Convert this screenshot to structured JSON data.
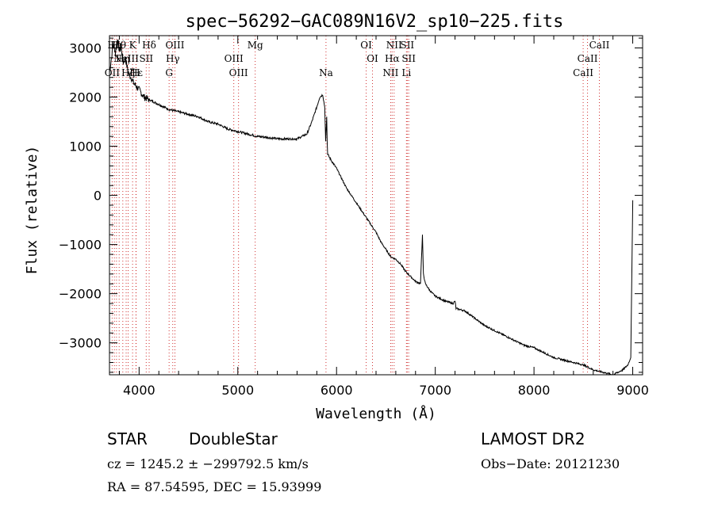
{
  "chart_data": {
    "type": "line",
    "title": "spec−56292−GAC089N16V2_sp10−225.fits",
    "xlabel": "Wavelength (Å)",
    "ylabel": "Flux (relative)",
    "xlim": [
      3700,
      9100
    ],
    "ylim": [
      -3650,
      3250
    ],
    "xticks": [
      4000,
      5000,
      6000,
      7000,
      8000,
      9000
    ],
    "yticks": [
      -3000,
      -2000,
      -1000,
      0,
      1000,
      2000,
      3000
    ],
    "grid": false,
    "series": [
      {
        "x": [
          3700,
          3720,
          3740,
          3760,
          3780,
          3800,
          3820,
          3840,
          3860,
          3880,
          3900,
          3920,
          3940,
          3960,
          3980,
          4000,
          4050,
          4100,
          4150,
          4200,
          4300,
          4400,
          4500,
          4600,
          4700,
          4800,
          4900,
          5000,
          5100,
          5200,
          5300,
          5400,
          5500,
          5600,
          5700,
          5750,
          5800,
          5830,
          5860,
          5880,
          5890,
          5900,
          5905,
          5910,
          5920,
          5950,
          6000,
          6050,
          6100,
          6150,
          6200,
          6250,
          6300,
          6350,
          6400,
          6450,
          6500,
          6550,
          6600,
          6650,
          6700,
          6750,
          6800,
          6850,
          6860,
          6870,
          6880,
          6900,
          6950,
          7000,
          7100,
          7180,
          7200,
          7210,
          7300,
          7400,
          7500,
          7600,
          7700,
          7800,
          7900,
          8000,
          8100,
          8200,
          8300,
          8400,
          8500,
          8600,
          8700,
          8800,
          8850,
          8900,
          8950,
          8980,
          9000
        ],
        "y": [
          2500,
          2800,
          3100,
          2900,
          3200,
          2950,
          3000,
          2700,
          2800,
          2600,
          2450,
          2400,
          2300,
          2250,
          2200,
          2150,
          2000,
          1950,
          1900,
          1850,
          1750,
          1700,
          1650,
          1600,
          1500,
          1450,
          1350,
          1300,
          1250,
          1200,
          1180,
          1150,
          1150,
          1150,
          1250,
          1500,
          1800,
          2000,
          2050,
          1800,
          1100,
          1600,
          1100,
          850,
          800,
          700,
          550,
          350,
          150,
          0,
          -150,
          -300,
          -450,
          -600,
          -750,
          -950,
          -1100,
          -1250,
          -1300,
          -1400,
          -1550,
          -1650,
          -1750,
          -1800,
          -1300,
          -800,
          -1600,
          -1800,
          -1950,
          -2050,
          -2150,
          -2200,
          -2150,
          -2300,
          -2350,
          -2500,
          -2650,
          -2750,
          -2850,
          -2950,
          -3050,
          -3100,
          -3200,
          -3300,
          -3350,
          -3400,
          -3450,
          -3550,
          -3600,
          -3650,
          -3600,
          -3550,
          -3450,
          -3300,
          -100
        ]
      }
    ],
    "lines": [
      {
        "x": 3727,
        "labels": [
          "OII"
        ],
        "rows": [
          3
        ]
      },
      {
        "x": 3750,
        "labels": [
          "Hη"
        ],
        "rows": [
          1
        ]
      },
      {
        "x": 3771,
        "labels": [
          "Hι"
        ],
        "rows": [
          1
        ]
      },
      {
        "x": 3798,
        "labels": [
          "Hθ"
        ],
        "rows": [
          1
        ]
      },
      {
        "x": 3835,
        "labels": [
          "Hη"
        ],
        "rows": [
          2
        ]
      },
      {
        "x": 3869,
        "labels": [
          "NeIII"
        ],
        "rows": [
          2
        ]
      },
      {
        "x": 3889,
        "labels": [
          "Hζ"
        ],
        "rows": [
          3
        ]
      },
      {
        "x": 3934,
        "labels": [
          "K"
        ],
        "rows": [
          1
        ]
      },
      {
        "x": 3968,
        "labels": [
          "H"
        ],
        "rows": [
          3
        ]
      },
      {
        "x": 3970,
        "labels": [
          "Hε"
        ],
        "rows": [
          3
        ]
      },
      {
        "x": 4072,
        "labels": [
          "SII"
        ],
        "rows": [
          2
        ]
      },
      {
        "x": 4102,
        "labels": [
          "Hδ"
        ],
        "rows": [
          1
        ]
      },
      {
        "x": 4304,
        "labels": [
          "G"
        ],
        "rows": [
          3
        ]
      },
      {
        "x": 4341,
        "labels": [
          "Hγ"
        ],
        "rows": [
          2
        ]
      },
      {
        "x": 4363,
        "labels": [
          "OIII"
        ],
        "rows": [
          1
        ]
      },
      {
        "x": 4959,
        "labels": [
          "OIII"
        ],
        "rows": [
          2
        ]
      },
      {
        "x": 5007,
        "labels": [
          "OIII"
        ],
        "rows": [
          3
        ]
      },
      {
        "x": 5176,
        "labels": [
          "Mg"
        ],
        "rows": [
          1
        ]
      },
      {
        "x": 5893,
        "labels": [
          "Na"
        ],
        "rows": [
          3
        ]
      },
      {
        "x": 6300,
        "labels": [
          "OI"
        ],
        "rows": [
          1
        ]
      },
      {
        "x": 6364,
        "labels": [
          "OI"
        ],
        "rows": [
          2
        ]
      },
      {
        "x": 6548,
        "labels": [
          "NII"
        ],
        "rows": [
          3
        ]
      },
      {
        "x": 6563,
        "labels": [
          "Hα"
        ],
        "rows": [
          2
        ]
      },
      {
        "x": 6583,
        "labels": [
          "NII"
        ],
        "rows": [
          1
        ]
      },
      {
        "x": 6708,
        "labels": [
          "Li"
        ],
        "rows": [
          3
        ]
      },
      {
        "x": 6716,
        "labels": [
          "SII"
        ],
        "rows": [
          1
        ]
      },
      {
        "x": 6731,
        "labels": [
          "SII"
        ],
        "rows": [
          2
        ]
      },
      {
        "x": 8498,
        "labels": [
          "CaII"
        ],
        "rows": [
          3
        ]
      },
      {
        "x": 8542,
        "labels": [
          "CaII"
        ],
        "rows": [
          2
        ]
      },
      {
        "x": 8662,
        "labels": [
          "CaII"
        ],
        "rows": [
          1
        ]
      }
    ],
    "colors": {
      "line": "#000000",
      "marker": "#d03030"
    }
  },
  "info": {
    "object_type_key": "STAR",
    "object_type_value": "DoubleStar",
    "survey": "LAMOST DR2",
    "cz": "cz = 1245.2 ± −299792.5 km/s",
    "obs_date": "Obs−Date: 20121230",
    "radec": "RA =  87.54595, DEC =  15.93999"
  }
}
